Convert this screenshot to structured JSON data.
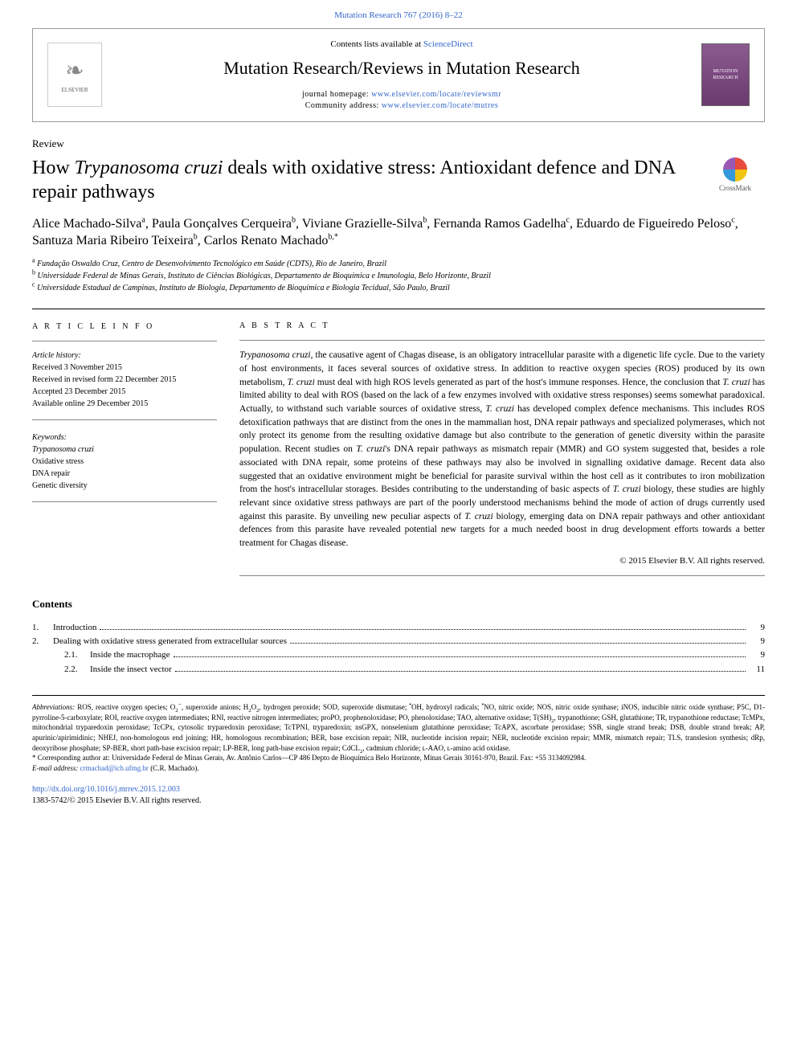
{
  "colors": {
    "link": "#3366cc",
    "text": "#000000",
    "border": "#9a9a9a",
    "thumb_grad_top": "#8b5a8f",
    "thumb_grad_bot": "#6b3a6f"
  },
  "top_link": {
    "label": "Mutation Research 767 (2016) 8–22"
  },
  "header": {
    "contents_prefix": "Contents lists available at ",
    "contents_link": "ScienceDirect",
    "journal": "Mutation Research/Reviews in Mutation Research",
    "homepage_prefix": "journal homepage: ",
    "homepage_url": "www.elsevier.com/locate/reviewsmr",
    "community_prefix": "Community address: ",
    "community_url": "www.elsevier.com/locate/mutres",
    "elsevier_label": "ELSEVIER"
  },
  "article": {
    "type": "Review",
    "title_pre": "How ",
    "title_species": "Trypanosoma cruzi",
    "title_post": " deals with oxidative stress: Antioxidant defence and DNA repair pathways",
    "crossmark": "CrossMark"
  },
  "authors_html": "Alice Machado-Silva<sup>a</sup>, Paula Gonçalves Cerqueira<sup>b</sup>, Viviane Grazielle-Silva<sup>b</sup>, Fernanda Ramos Gadelha<sup>c</sup>, Eduardo de Figueiredo Peloso<sup>c</sup>, Santuza Maria Ribeiro Teixeira<sup>b</sup>, Carlos Renato Machado<sup>b,*</sup>",
  "affiliations": [
    {
      "sup": "a",
      "text": "Fundação Oswaldo Cruz, Centro de Desenvolvimento Tecnológico em Saúde (CDTS), Rio de Janeiro, Brazil"
    },
    {
      "sup": "b",
      "text": "Universidade Federal de Minas Gerais, Instituto de Ciências Biológicas, Departamento de Bioquímica e Imunologia, Belo Horizonte, Brazil"
    },
    {
      "sup": "c",
      "text": "Universidade Estadual de Campinas, Instituto de Biologia, Departamento de Bioquímica e Biologia Tecidual, São Paulo, Brazil"
    }
  ],
  "info": {
    "heading": "A R T I C L E   I N F O",
    "history_label": "Article history:",
    "received": "Received 3 November 2015",
    "revised": "Received in revised form 22 December 2015",
    "accepted": "Accepted 23 December 2015",
    "online": "Available online 29 December 2015",
    "keywords_label": "Keywords:",
    "keywords": [
      "Trypanosoma cruzi",
      "Oxidative stress",
      "DNA repair",
      "Genetic diversity"
    ]
  },
  "abstract": {
    "heading": "A B S T R A C T",
    "body_html": "<em>Trypanosoma cruzi</em>, the causative agent of Chagas disease, is an obligatory intracellular parasite with a digenetic life cycle. Due to the variety of host environments, it faces several sources of oxidative stress. In addition to reactive oxygen species (ROS) produced by its own metabolism, <em>T. cruzi</em> must deal with high ROS levels generated as part of the host's immune responses. Hence, the conclusion that <em>T. cruzi</em> has limited ability to deal with ROS (based on the lack of a few enzymes involved with oxidative stress responses) seems somewhat paradoxical. Actually, to withstand such variable sources of oxidative stress, <em>T. cruzi</em> has developed complex defence mechanisms. This includes ROS detoxification pathways that are distinct from the ones in the mammalian host, DNA repair pathways and specialized polymerases, which not only protect its genome from the resulting oxidative damage but also contribute to the generation of genetic diversity within the parasite population. Recent studies on <em>T. cruzi</em>'s DNA repair pathways as mismatch repair (MMR) and GO system suggested that, besides a role associated with DNA repair, some proteins of these pathways may also be involved in signalling oxidative damage. Recent data also suggested that an oxidative environment might be beneficial for parasite survival within the host cell as it contributes to iron mobilization from the host's intracellular storages. Besides contributing to the understanding of basic aspects of <em>T. cruzi</em> biology, these studies are highly relevant since oxidative stress pathways are part of the poorly understood mechanisms behind the mode of action of drugs currently used against this parasite. By unveiling new peculiar aspects of <em>T. cruzi</em> biology, emerging data on DNA repair pathways and other antioxidant defences from this parasite have revealed potential new targets for a much needed boost in drug development efforts towards a better treatment for Chagas disease.",
    "copyright": "© 2015 Elsevier B.V. All rights reserved."
  },
  "contents": {
    "heading": "Contents",
    "items": [
      {
        "num": "1.",
        "label": "Introduction",
        "page": "9",
        "sub": []
      },
      {
        "num": "2.",
        "label": "Dealing with oxidative stress generated from extracellular sources",
        "page": "9",
        "sub": [
          {
            "num": "2.1.",
            "label": "Inside the macrophage",
            "page": "9"
          },
          {
            "num": "2.2.",
            "label": "Inside the insect vector",
            "page": "11"
          }
        ]
      }
    ]
  },
  "footnotes": {
    "abbrev_label": "Abbreviations:",
    "abbrev_text_html": " ROS, reactive oxygen species; O<sub>2</sub><sup>−</sup>, superoxide anions; H<sub>2</sub>O<sub>2</sub>, hydrogen peroxide; SOD, superoxide dismutase; <sup>•</sup>OH, hydroxyl radicals; <sup>•</sup>NO, nitric oxide; NOS, nitric oxide synthase; iNOS, inducible nitric oxide synthase; P5C, D1-pyrroline-5-carboxylate; ROI, reactive oxygen intermediates; RNI, reactive nitrogen intermediates; proPO, prophenoloxidase; PO, phenoloxidase; TAO, alternative oxidase; T(SH)<sub>2</sub>, trypanothione; GSH, glutathione; TR, trypanothione reductase; TcMPx, mitochondrial tryparedoxin peroxidase; TcCPx, cytosolic tryparedoxin peroxidase; TcTPNI, tryparedoxin; nsGPX, nonselenium glutathione peroxidase; TcAPX, ascorbate peroxidase; SSB, single strand break; DSB, double strand break; AP, apurinic/apirimidinic; NHEJ, non-homologous end joining; HR, homologous recombination; BER, base excision repair; NIR, nucleotide incision repair; NER, nucleotide excision repair; MMR, mismatch repair; TLS, translesion synthesis; dRp, deoxyribose phosphate; SP-BER, short path-base excision repair; LP-BER, long path-base excision repair; CdCL<sub>2</sub>, cadmium chloride; ʟ-AAO, ʟ-amino acid oxidase.",
    "corresp_marker": "*",
    "corresp_text": " Corresponding author at: Universidade Federal de Minas Gerais, Av. Antônio Carlos—CP 486 Depto de Bioquímica Belo Horizonte, Minas Gerais 30161-970, Brazil. Fax: +55 3134092984.",
    "email_label": "E-mail address: ",
    "email": "crmachad@icb.ufmg.br",
    "email_suffix": " (C.R. Machado)."
  },
  "footer": {
    "doi": "http://dx.doi.org/10.1016/j.mrrev.2015.12.003",
    "issn_line": "1383-5742/© 2015 Elsevier B.V. All rights reserved."
  }
}
